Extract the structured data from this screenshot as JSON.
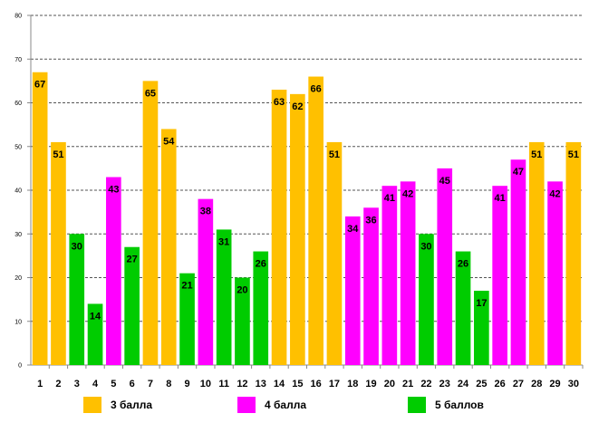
{
  "chart_data": {
    "type": "bar",
    "title": "",
    "xlabel": "",
    "ylabel": "",
    "ylim": [
      0,
      80
    ],
    "yticks": [
      0,
      10,
      20,
      30,
      40,
      50,
      60,
      70,
      80
    ],
    "grid": true,
    "legend_position": "bottom",
    "categories": [
      "1",
      "2",
      "3",
      "4",
      "5",
      "6",
      "7",
      "8",
      "9",
      "10",
      "11",
      "12",
      "13",
      "14",
      "15",
      "16",
      "17",
      "18",
      "19",
      "20",
      "21",
      "22",
      "23",
      "24",
      "25",
      "26",
      "27",
      "28",
      "29",
      "30"
    ],
    "values": [
      67,
      51,
      30,
      14,
      43,
      27,
      65,
      54,
      21,
      38,
      31,
      20,
      26,
      63,
      62,
      66,
      51,
      34,
      36,
      41,
      42,
      30,
      45,
      26,
      17,
      41,
      47,
      51,
      42,
      51
    ],
    "groups": [
      "3 балла",
      "3 балла",
      "5 баллов",
      "5 баллов",
      "4 балла",
      "5 баллов",
      "3 балла",
      "3 балла",
      "5 баллов",
      "4 балла",
      "5 баллов",
      "5 баллов",
      "5 баллов",
      "3 балла",
      "3 балла",
      "3 балла",
      "3 балла",
      "4 балла",
      "4 балла",
      "4 балла",
      "4 балла",
      "5 баллов",
      "4 балла",
      "5 баллов",
      "5 баллов",
      "4 балла",
      "4 балла",
      "3 балла",
      "4 балла",
      "3 балла"
    ],
    "series": [
      {
        "name": "3 балла",
        "color": "#FFC000"
      },
      {
        "name": "4 балла",
        "color": "#FF00FF"
      },
      {
        "name": "5 баллов",
        "color": "#00CC00"
      }
    ]
  }
}
